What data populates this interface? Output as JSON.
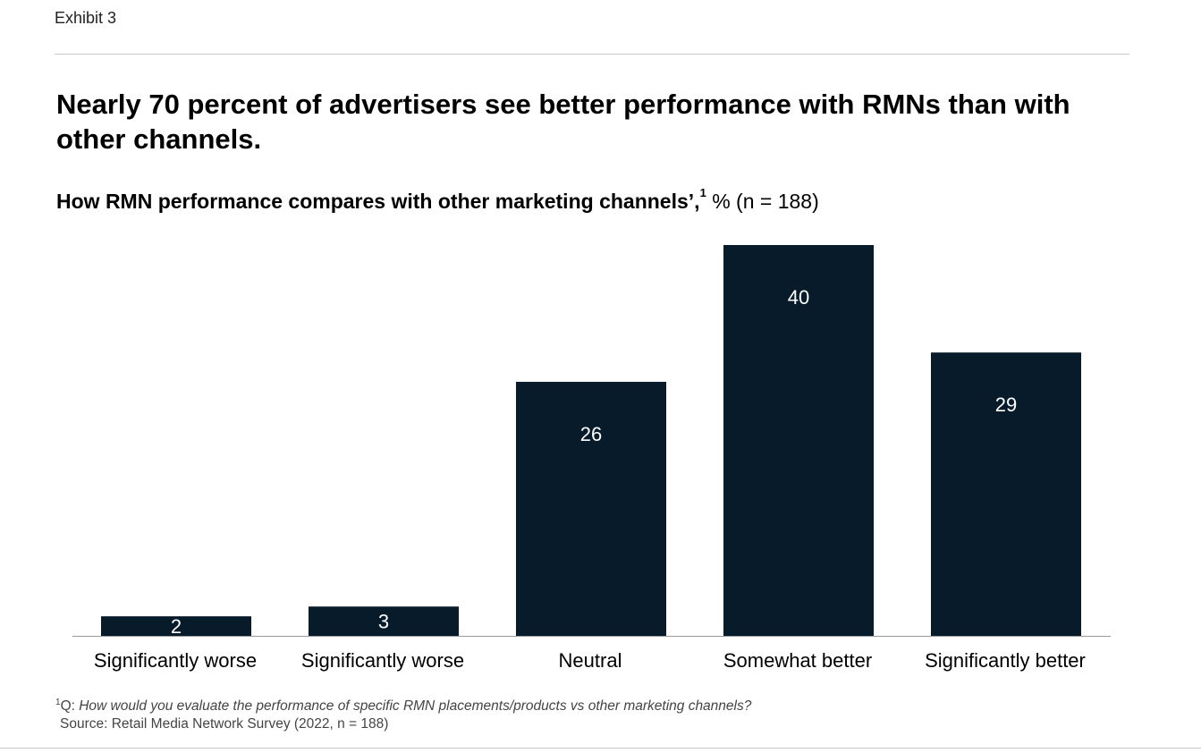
{
  "exhibit_label": "Exhibit 3",
  "headline": "Nearly 70 percent of advertisers see better performance with RMNs than with other channels.",
  "subtitle": {
    "bold_text": "How RMN performance compares with other marketing channels’,",
    "footnote_marker": "1",
    "unit_text": "% (n = 188)"
  },
  "footnote": {
    "marker": "1",
    "prefix": "Q: ",
    "question": "How would you evaluate the performance of specific RMN placements/products vs other marketing channels?"
  },
  "source": "Source: Retail Media Network Survey (2022, n = 188)",
  "colors": {
    "bar": "#071b2b",
    "axis": "#999999",
    "label_inside": "#ffffff",
    "label_outside": "#000000"
  },
  "chart_data": {
    "type": "bar",
    "title": "How RMN performance compares with other marketing channels’, % (n = 188)",
    "categories": [
      "Significantly worse",
      "Significantly worse",
      "Neutral",
      "Somewhat better",
      "Significantly better"
    ],
    "values": [
      2,
      3,
      26,
      40,
      29
    ],
    "value_labels": [
      "2",
      "3",
      "26",
      "40",
      "29"
    ],
    "xlabel": "",
    "ylabel": "%",
    "ylim": [
      0,
      40
    ],
    "grid": false,
    "legend": "none"
  }
}
